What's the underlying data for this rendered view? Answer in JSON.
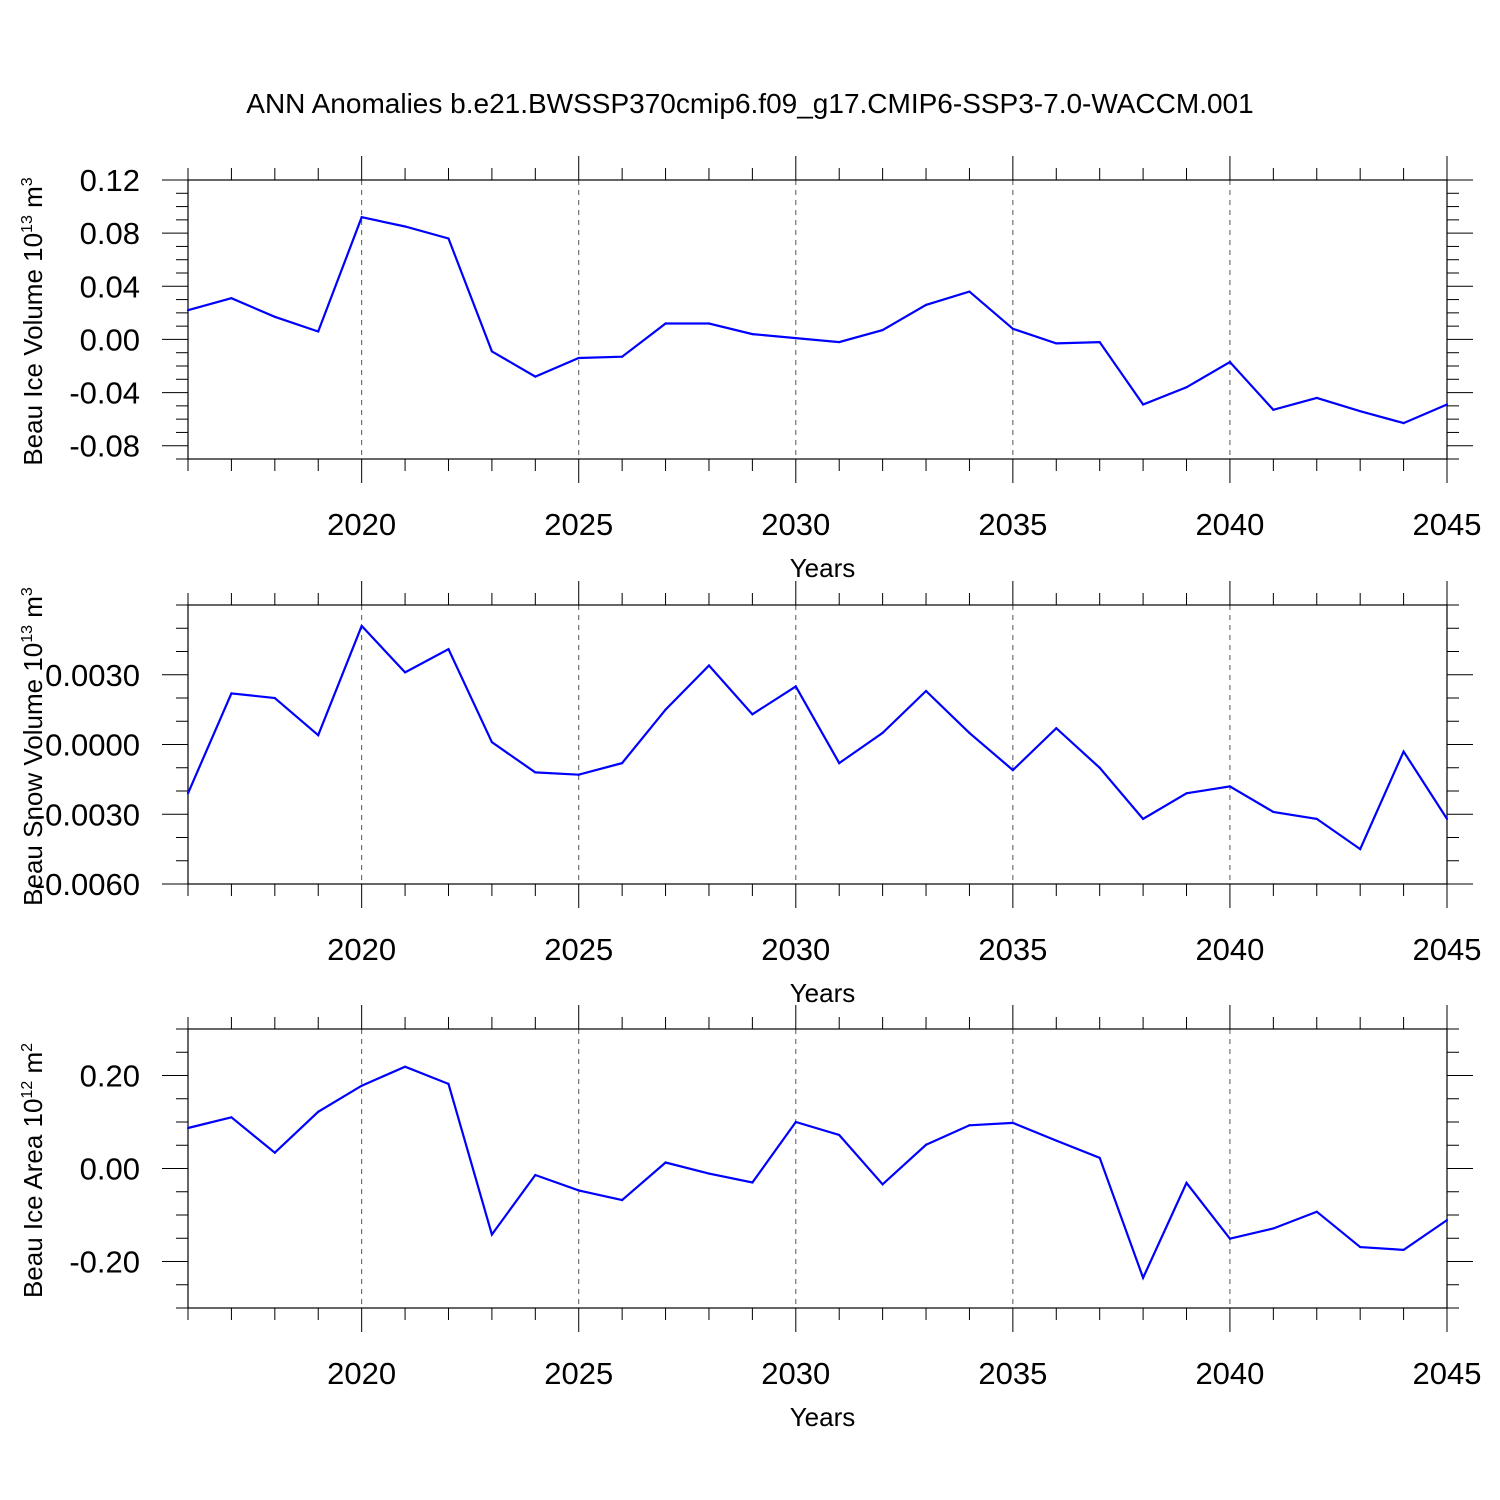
{
  "title": "ANN Anomalies b.e21.BWSSP370cmip6.f09_g17.CMIP6-SSP3-7.0-WACCM.001",
  "line_color": "#0000ff",
  "chart_data": [
    {
      "type": "line",
      "xlabel": "Years",
      "ylabel": "Beau Ice Volume 10",
      "ylabel_exp": "13",
      "ylabel_unit": " m",
      "ylabel_unit_exp": "3",
      "xlim": [
        2016,
        2045
      ],
      "ylim": [
        -0.09,
        0.12
      ],
      "x_ticks": [
        2020,
        2025,
        2030,
        2035,
        2040,
        2045
      ],
      "y_ticks": [
        0.12,
        0.08,
        0.04,
        0.0,
        -0.04,
        -0.08
      ],
      "y_tick_labels": [
        "0.12",
        "0.08",
        "0.04",
        "0.00",
        "-0.04",
        "-0.08"
      ],
      "y_minor_step": 0.01,
      "x": [
        2016,
        2017,
        2018,
        2019,
        2020,
        2021,
        2022,
        2023,
        2024,
        2025,
        2026,
        2027,
        2028,
        2029,
        2030,
        2031,
        2032,
        2033,
        2034,
        2035,
        2036,
        2037,
        2038,
        2039,
        2040,
        2041,
        2042,
        2043,
        2044,
        2045
      ],
      "y": [
        0.022,
        0.031,
        0.017,
        0.006,
        0.092,
        0.085,
        0.076,
        -0.009,
        -0.028,
        -0.014,
        -0.013,
        0.012,
        0.012,
        0.004,
        0.001,
        -0.002,
        0.007,
        0.026,
        0.036,
        0.008,
        -0.003,
        -0.002,
        -0.049,
        -0.036,
        -0.017,
        -0.053,
        -0.044,
        -0.054,
        -0.063,
        -0.049
      ]
    },
    {
      "type": "line",
      "xlabel": "Years",
      "ylabel": "Beau Snow Volume 10",
      "ylabel_exp": "13",
      "ylabel_unit": " m",
      "ylabel_unit_exp": "3",
      "xlim": [
        2016,
        2045
      ],
      "ylim": [
        -0.006,
        0.006
      ],
      "x_ticks": [
        2020,
        2025,
        2030,
        2035,
        2040,
        2045
      ],
      "y_ticks": [
        0.003,
        0.0,
        -0.003,
        -0.006
      ],
      "y_tick_labels": [
        "0.0030",
        "0.0000",
        "-0.0030",
        "-0.0060"
      ],
      "y_minor_step": 0.001,
      "x": [
        2016,
        2017,
        2018,
        2019,
        2020,
        2021,
        2022,
        2023,
        2024,
        2025,
        2026,
        2027,
        2028,
        2029,
        2030,
        2031,
        2032,
        2033,
        2034,
        2035,
        2036,
        2037,
        2038,
        2039,
        2040,
        2041,
        2042,
        2043,
        2044,
        2045
      ],
      "y": [
        -0.0021,
        0.0022,
        0.002,
        0.0004,
        0.0051,
        0.0031,
        0.0041,
        0.0001,
        -0.0012,
        -0.0013,
        -0.0008,
        0.0015,
        0.0034,
        0.0013,
        0.0025,
        -0.0008,
        0.0005,
        0.0023,
        0.0005,
        -0.0011,
        0.0007,
        -0.001,
        -0.0032,
        -0.0021,
        -0.0018,
        -0.0029,
        -0.0032,
        -0.0045,
        -0.0003,
        -0.0032
      ]
    },
    {
      "type": "line",
      "xlabel": "Years",
      "ylabel": "Beau Ice Area 10",
      "ylabel_exp": "12",
      "ylabel_unit": " m",
      "ylabel_unit_exp": "2",
      "xlim": [
        2016,
        2045
      ],
      "ylim": [
        -0.3,
        0.3
      ],
      "x_ticks": [
        2020,
        2025,
        2030,
        2035,
        2040,
        2045
      ],
      "y_ticks": [
        0.2,
        0.0,
        -0.2
      ],
      "y_tick_labels": [
        "0.20",
        "0.00",
        "-0.20"
      ],
      "y_minor_step": 0.05,
      "x": [
        2016,
        2017,
        2018,
        2019,
        2020,
        2021,
        2022,
        2023,
        2024,
        2025,
        2026,
        2027,
        2028,
        2029,
        2030,
        2031,
        2032,
        2033,
        2034,
        2035,
        2036,
        2037,
        2038,
        2039,
        2040,
        2041,
        2042,
        2043,
        2044,
        2045
      ],
      "y": [
        0.087,
        0.11,
        0.034,
        0.122,
        0.178,
        0.219,
        0.182,
        -0.142,
        -0.014,
        -0.047,
        -0.068,
        0.013,
        -0.011,
        -0.03,
        0.1,
        0.072,
        -0.034,
        0.051,
        0.093,
        0.098,
        0.06,
        0.023,
        -0.235,
        -0.031,
        -0.151,
        -0.129,
        -0.093,
        -0.169,
        -0.175,
        -0.111
      ]
    }
  ]
}
